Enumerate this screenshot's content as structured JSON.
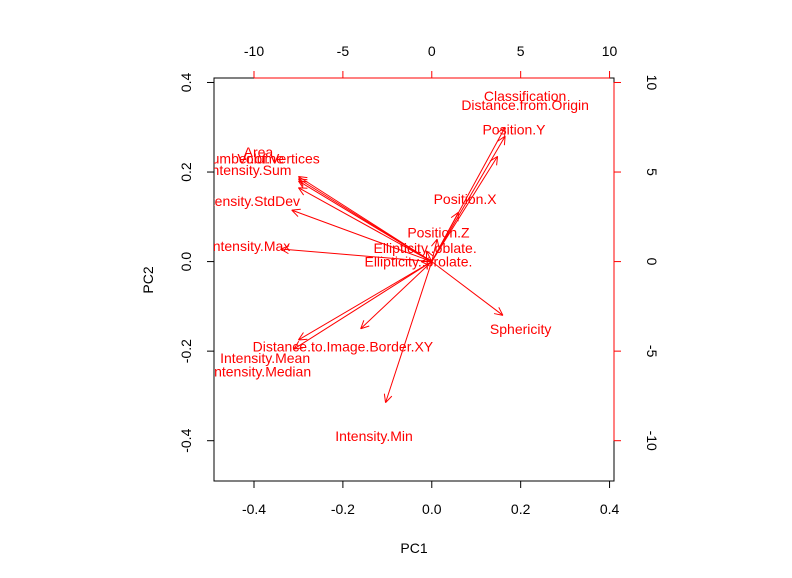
{
  "chart_data": {
    "type": "biplot",
    "title": "",
    "xlabel": "PC1",
    "ylabel": "PC2",
    "xlim": [
      -0.49,
      0.41
    ],
    "ylim": [
      -0.49,
      0.41
    ],
    "x_ticks": [
      -0.4,
      -0.2,
      0.0,
      0.2,
      0.4
    ],
    "x_tick_labels": [
      "-0.4",
      "-0.2",
      "0.0",
      "0.2",
      "0.4"
    ],
    "y_ticks": [
      -0.4,
      -0.2,
      0.0,
      0.2,
      0.4
    ],
    "y_tick_labels": [
      "-0.4",
      "-0.2",
      "0.0",
      "0.2",
      "0.4"
    ],
    "top_ticks": [
      -10,
      -5,
      0,
      5,
      10
    ],
    "top_tick_labels": [
      "-10",
      "-5",
      "0",
      "5",
      "10"
    ],
    "right_ticks": [
      -10,
      -5,
      0,
      5,
      10
    ],
    "right_tick_labels": [
      "-10",
      "-5",
      "0",
      "5",
      "10"
    ],
    "secondary_scale": 0.04,
    "grid": false,
    "color": "#ff0000",
    "vectors": [
      {
        "label": "Classification",
        "x": 0.21,
        "y": 0.37,
        "ax": 0.165,
        "ay": 0.3
      },
      {
        "label": "Distance.from.Origin",
        "x": 0.21,
        "y": 0.35,
        "ax": 0.165,
        "ay": 0.28
      },
      {
        "label": "Position.Y",
        "x": 0.185,
        "y": 0.295,
        "ax": 0.148,
        "ay": 0.235
      },
      {
        "label": "Position.X",
        "x": 0.075,
        "y": 0.14,
        "ax": 0.06,
        "ay": 0.11
      },
      {
        "label": "Position.Z",
        "x": 0.015,
        "y": 0.065,
        "ax": 0.012,
        "ay": 0.05
      },
      {
        "label": "Ellipticity..oblate.",
        "x": -0.015,
        "y": 0.03,
        "ax": -0.012,
        "ay": 0.024
      },
      {
        "label": "Ellipticity..prolate.",
        "x": -0.03,
        "y": 0.0,
        "ax": -0.024,
        "ay": 0.0
      },
      {
        "label": "Sphericity",
        "x": 0.2,
        "y": -0.15,
        "ax": 0.16,
        "ay": -0.12
      },
      {
        "label": "Distance.to.Image.Border.XY",
        "x": -0.2,
        "y": -0.19,
        "ax": -0.16,
        "ay": -0.15
      },
      {
        "label": "Intensity.Min",
        "x": -0.13,
        "y": -0.39,
        "ax": -0.104,
        "ay": -0.315
      },
      {
        "label": "Intensity.Median",
        "x": -0.385,
        "y": -0.245,
        "ax": -0.31,
        "ay": -0.195
      },
      {
        "label": "Intensity.Mean",
        "x": -0.375,
        "y": -0.215,
        "ax": -0.3,
        "ay": -0.175
      },
      {
        "label": "Intensity.Max",
        "x": -0.41,
        "y": 0.035,
        "ax": -0.34,
        "ay": 0.028
      },
      {
        "label": "Intensity.StdDev",
        "x": -0.41,
        "y": 0.135,
        "ax": -0.315,
        "ay": 0.115
      },
      {
        "label": "Intensity.Sum",
        "x": -0.41,
        "y": 0.205,
        "ax": -0.3,
        "ay": 0.165
      },
      {
        "label": "Number.of.Vertices",
        "x": -0.385,
        "y": 0.23,
        "ax": -0.3,
        "ay": 0.185
      },
      {
        "label": "Volume",
        "x": -0.385,
        "y": 0.23,
        "ax": -0.3,
        "ay": 0.18
      },
      {
        "label": "Area",
        "x": -0.39,
        "y": 0.245,
        "ax": -0.3,
        "ay": 0.19
      }
    ]
  }
}
